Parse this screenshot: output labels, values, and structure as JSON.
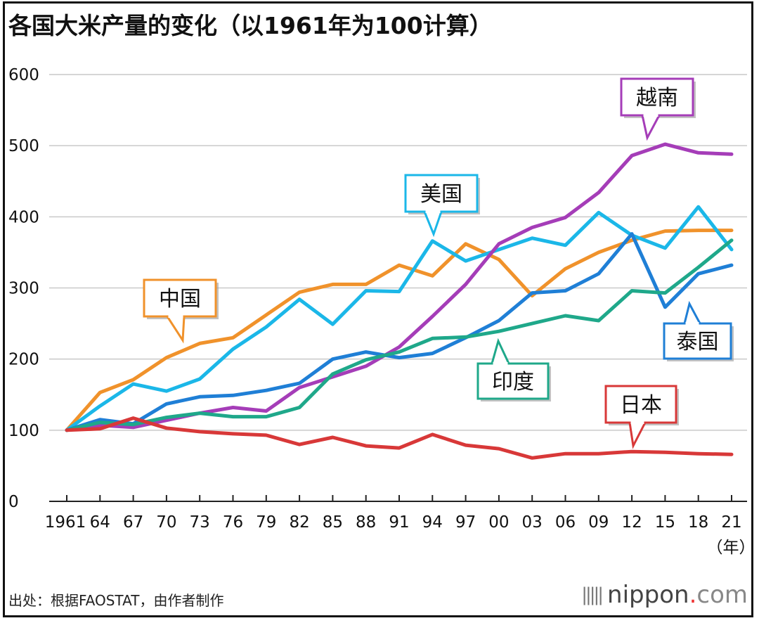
{
  "title": "各国大米产量的变化（以1961年为100计算）",
  "source": "出处：根据FAOSTAT，由作者制作",
  "brand": {
    "name": "nippon",
    "dot": ".",
    "tld": "com"
  },
  "chart_data": {
    "type": "line",
    "title": "各国大米产量的变化（以1961年为100计算）",
    "xlabel": "（年）",
    "ylabel": "",
    "categories": [
      "1961",
      "64",
      "67",
      "70",
      "73",
      "76",
      "79",
      "82",
      "85",
      "88",
      "91",
      "94",
      "97",
      "00",
      "03",
      "06",
      "09",
      "12",
      "15",
      "18",
      "21"
    ],
    "ylim": [
      0,
      600
    ],
    "yticks": [
      0,
      100,
      200,
      300,
      400,
      500,
      600
    ],
    "grid": true,
    "series": [
      {
        "name": "中国",
        "color": "#F0922B",
        "values": [
          100,
          153,
          171,
          202,
          222,
          230,
          262,
          294,
          305,
          305,
          332,
          317,
          362,
          340,
          289,
          327,
          350,
          367,
          380,
          381,
          381
        ]
      },
      {
        "name": "美国",
        "color": "#1BB7E8",
        "values": [
          100,
          134,
          165,
          155,
          172,
          214,
          245,
          284,
          249,
          296,
          295,
          366,
          338,
          354,
          370,
          360,
          406,
          374,
          356,
          414,
          354
        ]
      },
      {
        "name": "越南",
        "color": "#A53DB8",
        "values": [
          100,
          107,
          104,
          114,
          124,
          132,
          127,
          160,
          175,
          190,
          217,
          260,
          305,
          362,
          385,
          399,
          434,
          486,
          502,
          490,
          488
        ]
      },
      {
        "name": "泰国",
        "color": "#1F7FD6",
        "values": [
          100,
          115,
          109,
          137,
          147,
          149,
          156,
          166,
          200,
          210,
          202,
          208,
          230,
          254,
          293,
          296,
          320,
          376,
          273,
          320,
          332
        ]
      },
      {
        "name": "印度",
        "color": "#1FA88A",
        "values": [
          100,
          111,
          108,
          118,
          124,
          119,
          119,
          132,
          179,
          199,
          210,
          229,
          231,
          239,
          250,
          261,
          254,
          296,
          293,
          329,
          367
        ]
      },
      {
        "name": "日本",
        "color": "#D83838",
        "values": [
          100,
          102,
          117,
          103,
          98,
          95,
          93,
          80,
          90,
          78,
          75,
          94,
          79,
          74,
          61,
          67,
          67,
          70,
          69,
          67,
          66
        ]
      }
    ]
  }
}
